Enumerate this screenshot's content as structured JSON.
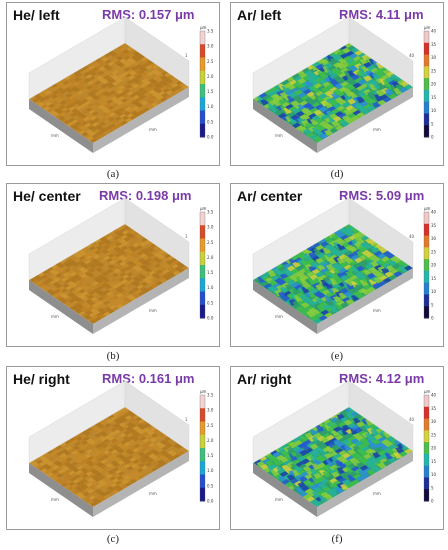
{
  "colors": {
    "rms_text": "#7a3aa8",
    "he_surface": "#c48a2a",
    "ar_surface": "#2e9e6a"
  },
  "colorbar_scales": {
    "he": {
      "unit": "μm",
      "ticks": [
        "3.5",
        "3.0",
        "2.5",
        "2.0",
        "1.5",
        "1.0",
        "0.5",
        "0.0"
      ]
    },
    "ar": {
      "unit": "μm",
      "ticks": [
        "40",
        "35",
        "30",
        "25",
        "20",
        "15",
        "10",
        "5",
        "0"
      ]
    }
  },
  "axis_tick_labels": {
    "he": "1",
    "ar": "40",
    "unit": "mm"
  },
  "panels": [
    {
      "title": "He/ left",
      "rms": "RMS: 0.157 μm",
      "caption": "(a)",
      "material": "he"
    },
    {
      "title": "Ar/ left",
      "rms": "RMS: 4.11 μm",
      "caption": "(d)",
      "material": "ar"
    },
    {
      "title": "He/ center",
      "rms": "RMS: 0.198 μm",
      "caption": "(b)",
      "material": "he"
    },
    {
      "title": "Ar/ center",
      "rms": "RMS: 5.09 μm",
      "caption": "(e)",
      "material": "ar"
    },
    {
      "title": "He/ right",
      "rms": "RMS: 0.161 μm",
      "caption": "(c)",
      "material": "he"
    },
    {
      "title": "Ar/ right",
      "rms": "RMS: 4.12 μm",
      "caption": "(f)",
      "material": "ar"
    }
  ]
}
